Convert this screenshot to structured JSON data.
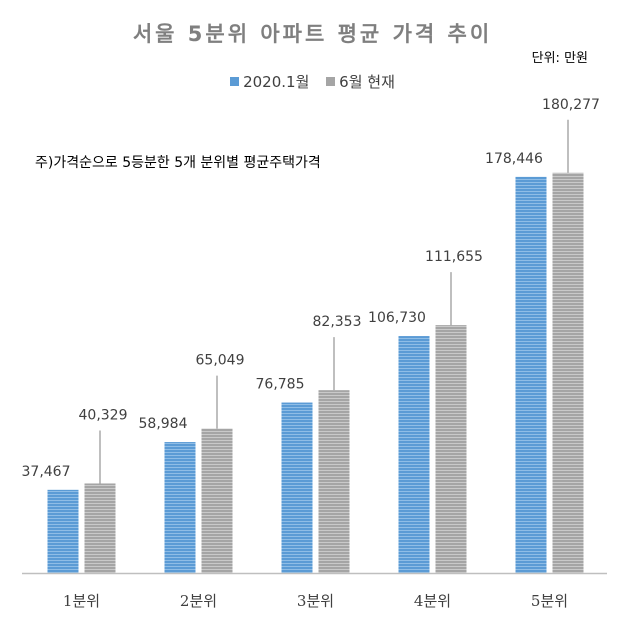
{
  "colors": {
    "series1": "#5b9bd5",
    "series2": "#a5a5a5",
    "axis": "#bfbfbf",
    "leader": "#7f7f7f"
  },
  "chart_data": {
    "type": "bar",
    "title": "서울 5분위 아파트 평균 가격 추이",
    "unit_label": "단위: 만원",
    "note": "주)가격순으로 5등분한 5개 분위별 평균주택가격",
    "categories": [
      "1분위",
      "2분위",
      "3분위",
      "4분위",
      "5분위"
    ],
    "series": [
      {
        "name": "2020.1월",
        "values": [
          37467,
          58984,
          76785,
          106730,
          178446
        ],
        "labels": [
          "37,467",
          "58,984",
          "76,785",
          "106,730",
          "178,446"
        ]
      },
      {
        "name": "6월 현재",
        "values": [
          40329,
          65049,
          82353,
          111655,
          180277
        ],
        "labels": [
          "40,329",
          "65,049",
          "82,353",
          "111,655",
          "180,277"
        ]
      }
    ],
    "ylim": [
      0,
      200000
    ],
    "legend_position": "top",
    "grid": false
  }
}
